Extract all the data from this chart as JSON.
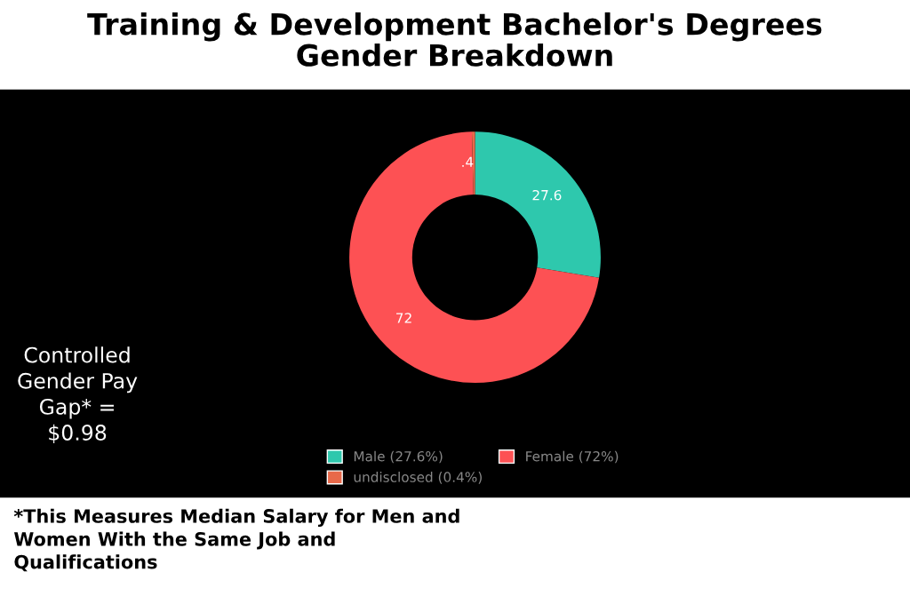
{
  "chart_data": {
    "type": "donut",
    "title": "Training & Development Bachelor's Degrees\nGender Breakdown",
    "categories": [
      "Male (27.6%)",
      "Female (72%)",
      "undisclosed (0.4%)"
    ],
    "values": [
      27.6,
      72,
      0.4
    ],
    "colors": [
      "#2ec8ad",
      "#fd5154",
      "#e8694a"
    ],
    "value_labels": [
      "27.6",
      "72",
      ".4"
    ],
    "legend": "bottom",
    "annotations": [
      "Controlled\nGender Pay\nGap* =\n$0.98",
      "*This Measures Median Salary for Men and\nWomen With the Same Job and\nQualifications"
    ]
  }
}
